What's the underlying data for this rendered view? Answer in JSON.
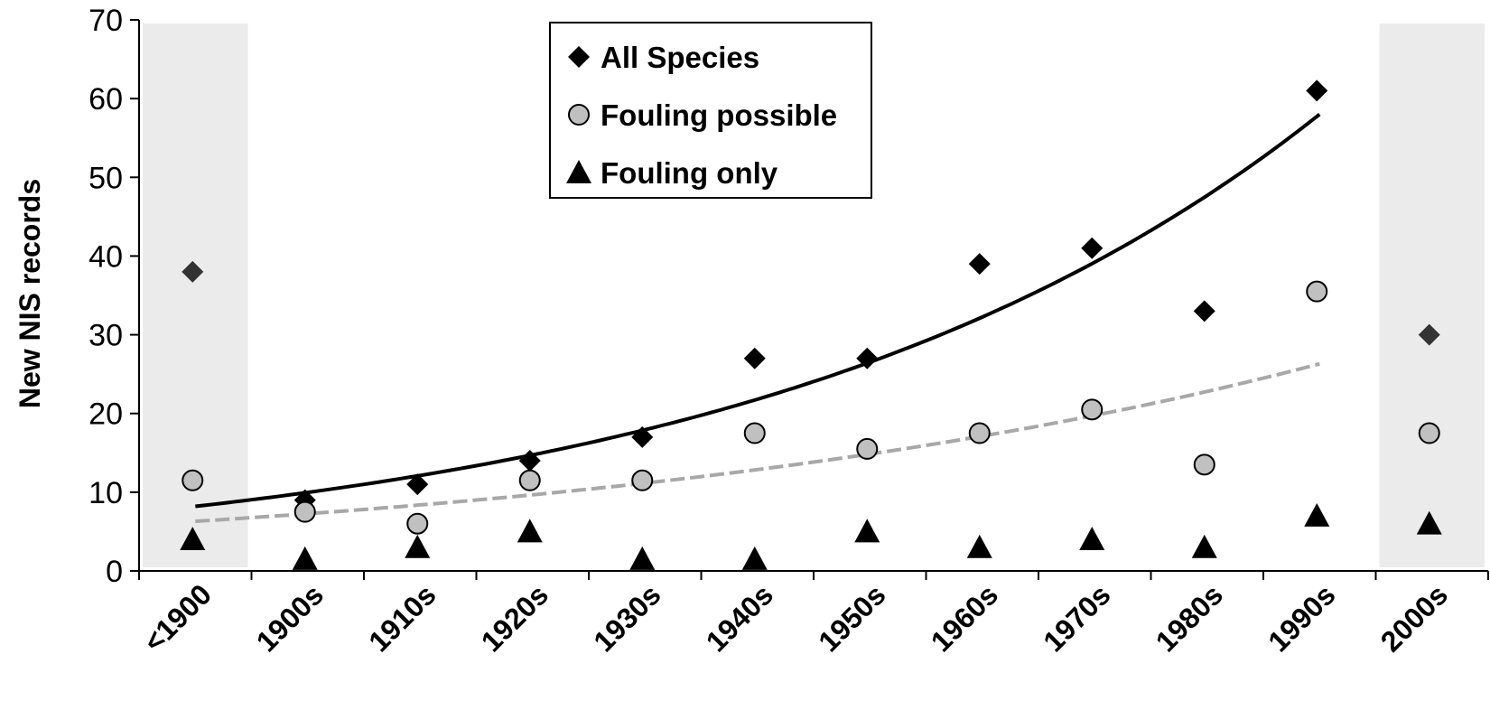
{
  "chart_data": {
    "type": "scatter",
    "categories": [
      "<1900",
      "1900s",
      "1910s",
      "1920s",
      "1930s",
      "1940s",
      "1950s",
      "1960s",
      "1970s",
      "1980s",
      "1990s",
      "2000s"
    ],
    "ylabel": "New NIS records",
    "xlabel": "",
    "ylim": [
      0,
      70
    ],
    "yticks": [
      0,
      10,
      20,
      30,
      40,
      50,
      60,
      70
    ],
    "shaded_categories": [
      "<1900",
      "2000s"
    ],
    "shade_color": "#ebebeb",
    "legend_position": "top-center",
    "series": [
      {
        "name": "All Species",
        "marker": "diamond",
        "color": "#000000",
        "values": [
          38,
          9,
          11,
          14,
          17,
          27,
          27,
          39,
          41,
          33,
          61,
          30
        ]
      },
      {
        "name": "Fouling possible",
        "marker": "circle",
        "color": "#c0c0c0",
        "values": [
          11.5,
          7.5,
          6,
          11.5,
          11.5,
          17.5,
          15.5,
          17.5,
          20.5,
          13.5,
          35.5,
          17.5
        ]
      },
      {
        "name": "Fouling only",
        "marker": "triangle",
        "color": "#000000",
        "values": [
          4,
          1.5,
          3,
          5,
          1.5,
          1.5,
          5,
          3,
          4,
          3,
          7,
          6
        ]
      }
    ],
    "trendlines": [
      {
        "series": "All Species",
        "style": "solid",
        "color": "#000000",
        "type": "exponential",
        "from_category": "<1900",
        "to_category": "1990s",
        "start_value": 8.2,
        "end_value": 58
      },
      {
        "series": "Fouling possible",
        "style": "dashed",
        "color": "#a8a8a8",
        "type": "exponential",
        "from_category": "<1900",
        "to_category": "1990s",
        "start_value": 6.3,
        "end_value": 26.3
      }
    ]
  }
}
